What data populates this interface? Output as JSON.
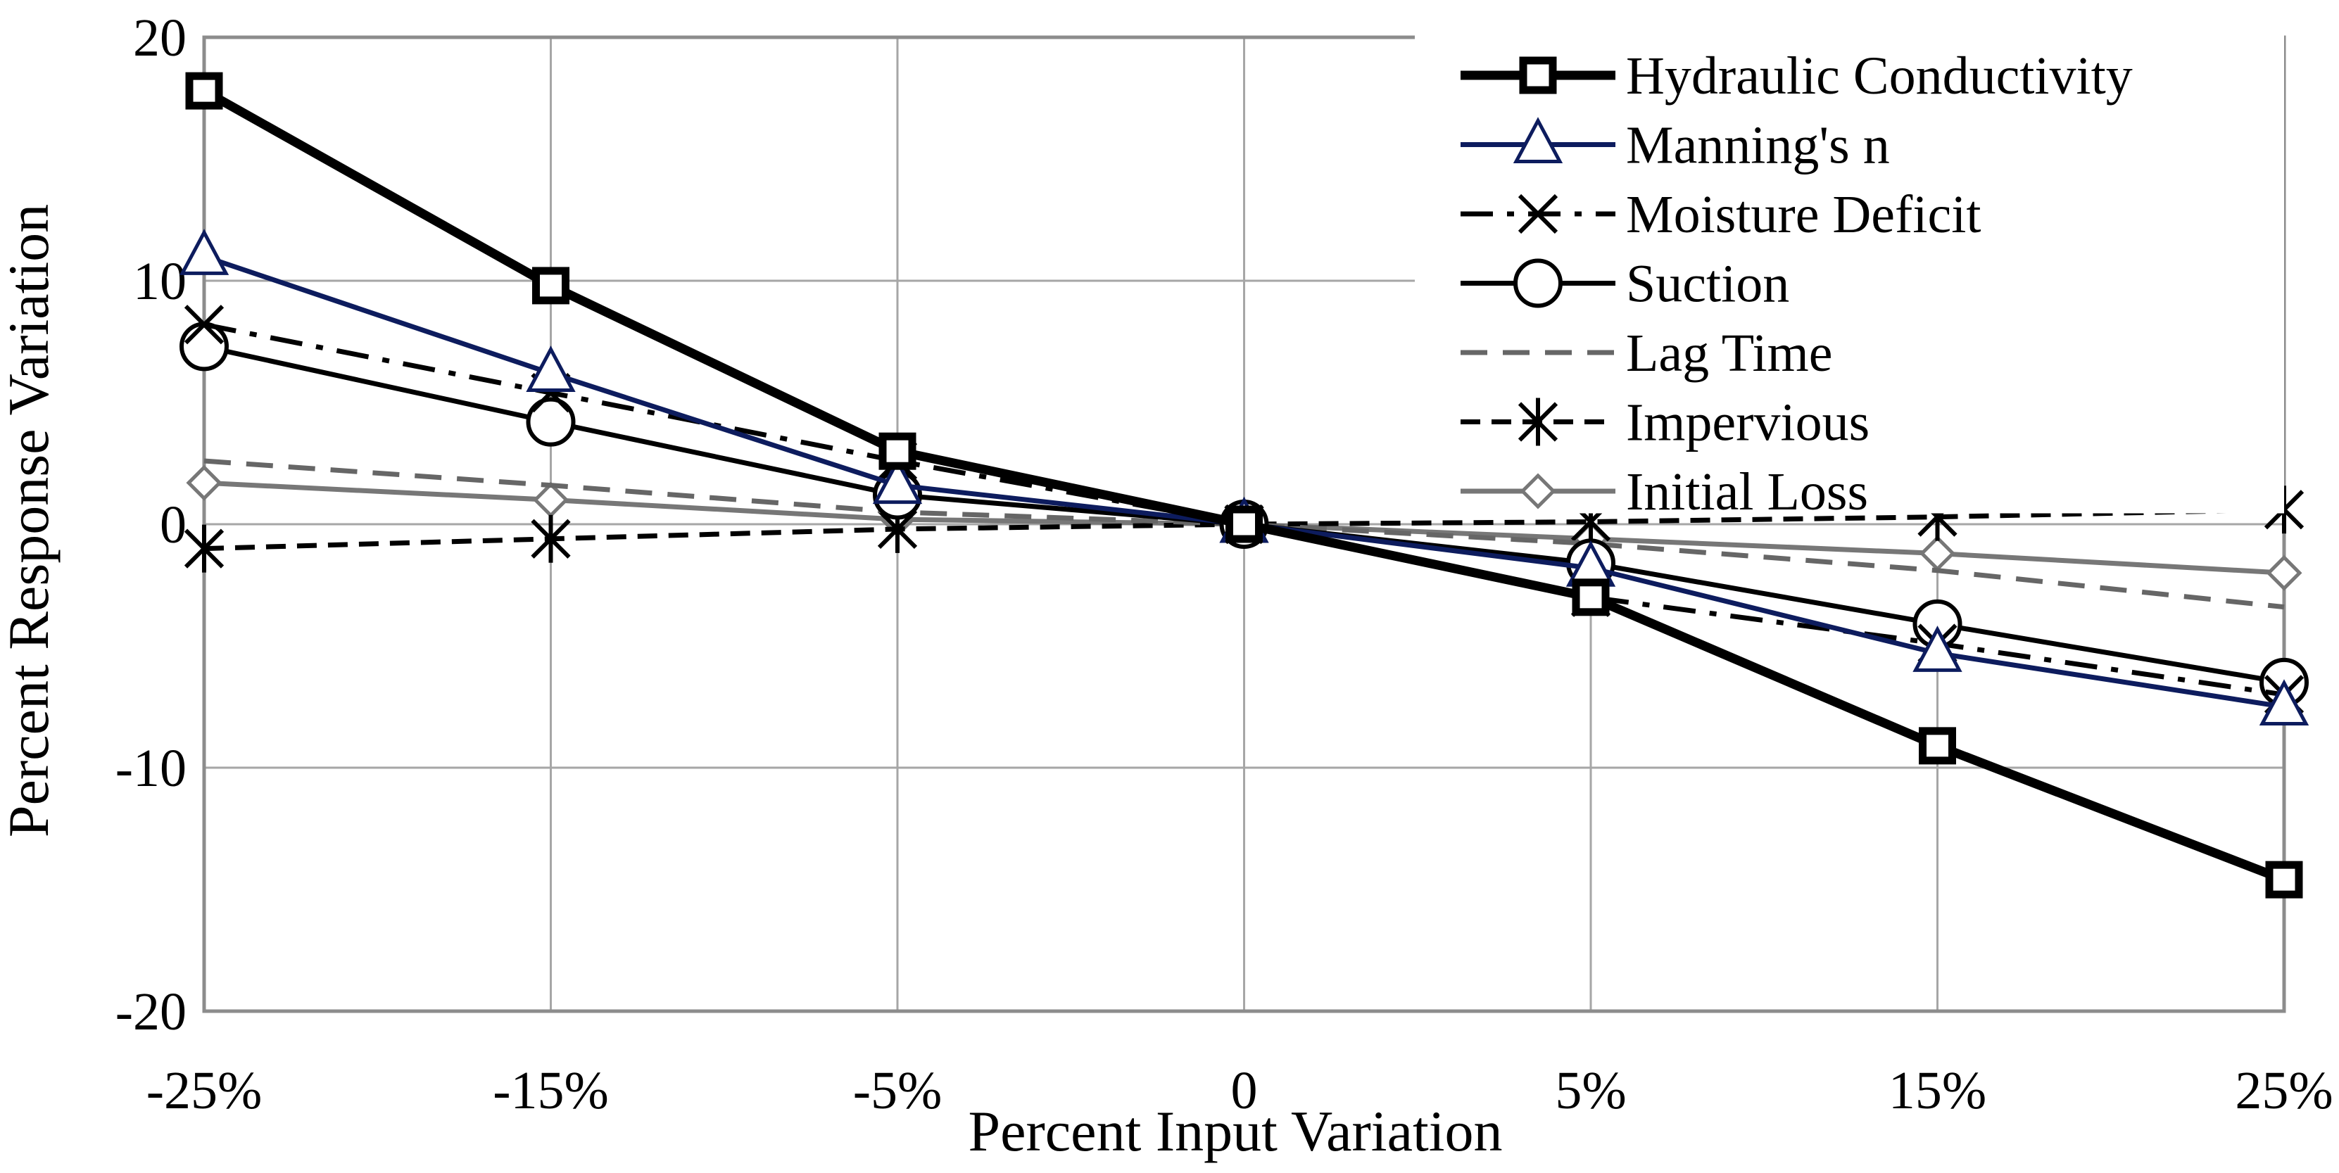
{
  "chart_data": {
    "type": "line",
    "title": "",
    "xlabel": "Percent Input Variation",
    "ylabel": "Percent Response Variation",
    "categories": [
      "-25%",
      "-15%",
      "-5%",
      "0",
      "5%",
      "15%",
      "25%"
    ],
    "ylim": [
      -20,
      20
    ],
    "yticks": [
      -20,
      -10,
      0,
      10,
      20
    ],
    "grid": true,
    "legend_position": "top-right",
    "series": [
      {
        "name": "Hydraulic Conductivity",
        "values": [
          17.8,
          9.8,
          3.0,
          0,
          -3.0,
          -9.1,
          -14.6
        ],
        "color": "#000000",
        "style": "solid",
        "marker": "square",
        "weight": "heavy"
      },
      {
        "name": "Manning's n",
        "values": [
          11.0,
          6.2,
          1.6,
          0,
          -1.8,
          -5.3,
          -7.5
        ],
        "color": "#0d1c5e",
        "style": "solid",
        "marker": "triangle",
        "weight": "normal"
      },
      {
        "name": "Moisture Deficit",
        "values": [
          8.2,
          5.4,
          2.6,
          0,
          -3.0,
          -4.9,
          -7.0
        ],
        "color": "#000000",
        "style": "dashdot",
        "marker": "x",
        "weight": "normal"
      },
      {
        "name": "Suction",
        "values": [
          7.3,
          4.2,
          1.2,
          0,
          -1.6,
          -4.1,
          -6.5
        ],
        "color": "#000000",
        "style": "solid",
        "marker": "circle",
        "weight": "normal"
      },
      {
        "name": "Lag Time",
        "values": [
          2.6,
          1.6,
          0.5,
          0,
          -0.8,
          -1.9,
          -3.4
        ],
        "color": "#666666",
        "style": "dashed",
        "marker": "none",
        "weight": "normal"
      },
      {
        "name": "Impervious",
        "values": [
          -1.0,
          -0.6,
          -0.2,
          0,
          0.1,
          0.3,
          0.6
        ],
        "color": "#000000",
        "style": "shortdash",
        "marker": "asterisk",
        "weight": "normal"
      },
      {
        "name": "Initial Loss",
        "values": [
          1.7,
          1.0,
          0.2,
          0,
          -0.6,
          -1.2,
          -2.0
        ],
        "color": "#777777",
        "style": "solid",
        "marker": "diamond",
        "weight": "normal"
      }
    ]
  }
}
